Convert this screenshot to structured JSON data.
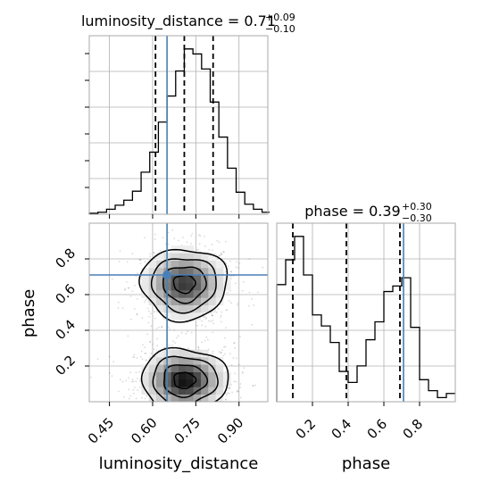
{
  "chart_data": {
    "type": "corner",
    "truth": {
      "luminosity_distance": 0.65,
      "phase": 0.71
    },
    "colors": {
      "truth": "#4a7fb5",
      "hist": "#000000",
      "grid": "#b0b0b0",
      "points": "#555555"
    },
    "panels": {
      "hist_dl": {
        "title_param": "luminosity_distance",
        "title_value": "0.71",
        "title_plus": "+0.09",
        "title_minus": "−0.10",
        "xlim": [
          0.38,
          1.0
        ],
        "quantiles": [
          0.61,
          0.71,
          0.81
        ],
        "bin_edges": [
          0.38,
          0.41,
          0.44,
          0.47,
          0.5,
          0.53,
          0.56,
          0.59,
          0.62,
          0.65,
          0.68,
          0.71,
          0.74,
          0.77,
          0.8,
          0.83,
          0.86,
          0.89,
          0.92,
          0.95,
          0.98,
          1.01
        ],
        "counts": [
          1,
          2,
          5,
          9,
          14,
          23,
          42,
          62,
          92,
          118,
          143,
          165,
          160,
          145,
          112,
          77,
          46,
          22,
          10,
          5,
          2
        ]
      },
      "hist_phase": {
        "title_param": "phase",
        "title_value": "0.39",
        "title_plus": "+0.30",
        "title_minus": "−0.30",
        "xlim": [
          0.0,
          1.0
        ],
        "xticks": [
          "0.2",
          "0.4",
          "0.6",
          "0.8"
        ],
        "xlabel": "phase",
        "quantiles": [
          0.09,
          0.39,
          0.69
        ],
        "bin_edges": [
          0.0,
          0.05,
          0.1,
          0.15,
          0.2,
          0.25,
          0.3,
          0.35,
          0.4,
          0.45,
          0.5,
          0.55,
          0.6,
          0.65,
          0.7,
          0.75,
          0.8,
          0.85,
          0.9,
          0.95,
          1.0
        ],
        "counts": [
          85,
          103,
          120,
          92,
          63,
          55,
          43,
          22,
          14,
          26,
          45,
          58,
          80,
          84,
          90,
          54,
          16,
          8,
          3,
          6
        ]
      },
      "joint": {
        "xlim": [
          0.38,
          1.0
        ],
        "ylim": [
          0.0,
          1.0
        ],
        "xticks": [
          "0.45",
          "0.60",
          "0.75",
          "0.90"
        ],
        "yticks": [
          "0.2",
          "0.4",
          "0.6",
          "0.8"
        ],
        "xlabel": "luminosity_distance",
        "ylabel": "phase",
        "modes": [
          {
            "x": 0.71,
            "y": 0.66,
            "sx": 0.075,
            "sy": 0.1,
            "w": 1.0
          },
          {
            "x": 0.71,
            "y": 0.12,
            "sx": 0.075,
            "sy": 0.09,
            "w": 1.15
          }
        ]
      }
    }
  }
}
